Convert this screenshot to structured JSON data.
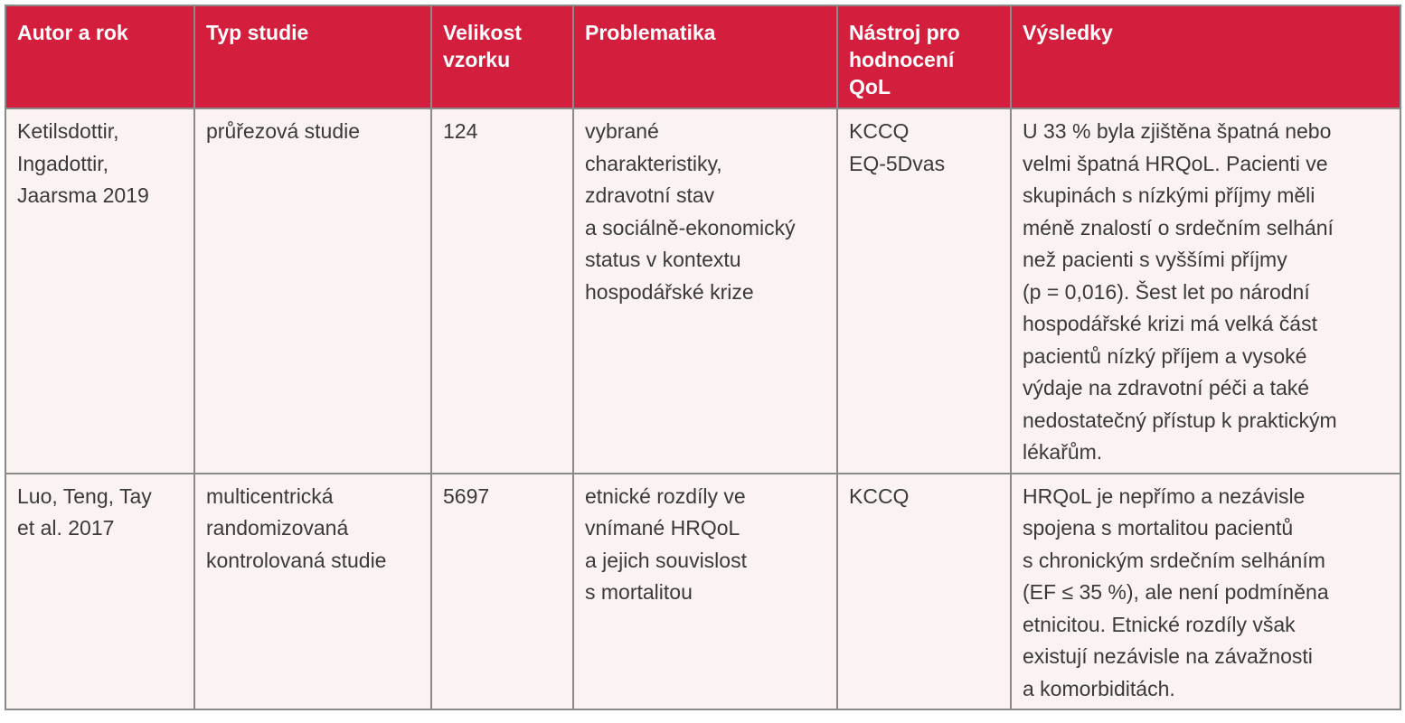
{
  "colors": {
    "header_bg": "#d31f3d",
    "header_text": "#ffffff",
    "cell_bg": "#fbf3f2",
    "cell_text": "#3a3a3a",
    "border": "#8a8a8a"
  },
  "table": {
    "headers": [
      [
        "Autor a rok"
      ],
      [
        "Typ studie"
      ],
      [
        "Velikost",
        "vzorku"
      ],
      [
        "Problematika"
      ],
      [
        "Nástroj pro",
        "hodnocení",
        "QoL"
      ],
      [
        "Výsledky"
      ]
    ],
    "rows": [
      [
        [
          "Ketilsdottir,",
          "Ingadottir,",
          "Jaarsma 2019"
        ],
        [
          "průřezová studie"
        ],
        [
          "124"
        ],
        [
          "vybrané",
          "charakteristiky,",
          "zdravotní stav",
          "a sociálně-ekonomický",
          "status v kontextu",
          "hospodářské krize"
        ],
        [
          "KCCQ",
          "EQ-5Dvas"
        ],
        [
          "U 33 % byla zjištěna špatná nebo",
          "velmi špatná HRQoL. Pacienti ve",
          "skupinách s nízkými příjmy měli",
          "méně znalostí o srdečním selhání",
          "než pacienti s vyššími příjmy",
          "(p = 0,016). Šest let po národní",
          "hospodářské krizi má velká část",
          "pacientů nízký příjem a vysoké",
          "výdaje na zdravotní péči a také",
          "nedostatečný přístup k praktickým",
          "lékařům."
        ]
      ],
      [
        [
          "Luo, Teng, Tay",
          "et al. 2017"
        ],
        [
          "multicentrická",
          "randomizovaná",
          "kontrolovaná studie"
        ],
        [
          "5697"
        ],
        [
          "etnické rozdíly ve",
          "vnímané HRQoL",
          "a jejich souvislost",
          "s mortalitou"
        ],
        [
          "KCCQ"
        ],
        [
          "HRQoL je nepřímo a nezávisle",
          "spojena s mortalitou pacientů",
          "s chronickým srdečním selháním",
          "(EF ≤ 35 %), ale není podmíněna",
          "etnicitou. Etnické rozdíly však",
          "existují nezávisle na závažnosti",
          "a komorbiditách."
        ]
      ]
    ]
  }
}
